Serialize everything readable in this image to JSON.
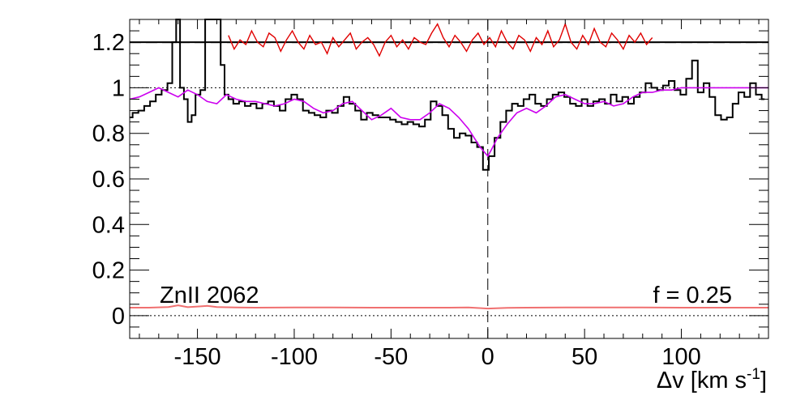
{
  "chart_data": {
    "type": "line",
    "xlabel_main": "Δv [km s",
    "xlabel_exp": "-1",
    "xlabel_close": "]",
    "ylabel": "",
    "xlim": [
      -185,
      145
    ],
    "ylim": [
      -0.1,
      1.3
    ],
    "x_ticks": [
      -150,
      -100,
      -50,
      0,
      50,
      100
    ],
    "x_tick_labels": [
      "-150",
      "-100",
      "-50",
      "0",
      "50",
      "100"
    ],
    "y_ticks": [
      0,
      0.2,
      0.4,
      0.6,
      0.8,
      1,
      1.2
    ],
    "y_tick_labels": [
      "0",
      "0.2",
      "0.4",
      "0.6",
      "0.8",
      "1",
      "1.2"
    ],
    "annotations": {
      "ion_label": "ZnII 2062",
      "f_label": "f = 0.25"
    },
    "reference_lines": {
      "continuum": 1.0,
      "zero": 0.0,
      "residual_mean": 1.2,
      "zero_velocity": 0
    },
    "colors": {
      "spectrum": "#000000",
      "model": "#cc00ee",
      "residuals": "#e00000",
      "error": "#f07070"
    },
    "series": [
      {
        "role": "spectrum",
        "style": "step",
        "x": [
          -185,
          -182,
          -179,
          -176,
          -173,
          -170,
          -167,
          -164,
          -162,
          -160,
          -158,
          -156,
          -154,
          -152,
          -150,
          -147,
          -145,
          -143,
          -141,
          -139,
          -137,
          -135,
          -133,
          -130,
          -127,
          -124,
          -121,
          -118,
          -115,
          -112,
          -109,
          -106,
          -103,
          -100,
          -97,
          -94,
          -91,
          -88,
          -85,
          -82,
          -79,
          -76,
          -73,
          -70,
          -67,
          -64,
          -61,
          -58,
          -55,
          -52,
          -49,
          -46,
          -43,
          -40,
          -37,
          -34,
          -31,
          -28,
          -25,
          -22,
          -19,
          -16,
          -13,
          -10,
          -7,
          -4,
          -1,
          2,
          5,
          8,
          11,
          14,
          17,
          20,
          23,
          26,
          29,
          32,
          35,
          38,
          41,
          44,
          47,
          50,
          53,
          56,
          59,
          62,
          65,
          68,
          71,
          74,
          77,
          80,
          83,
          86,
          89,
          92,
          95,
          98,
          101,
          104,
          107,
          110,
          113,
          116,
          119,
          122,
          125,
          128,
          131,
          134,
          137,
          140,
          143
        ],
        "y": [
          0.87,
          0.89,
          0.9,
          0.92,
          0.94,
          0.97,
          0.99,
          1.02,
          1.2,
          1.3,
          1.0,
          0.95,
          0.85,
          0.88,
          0.97,
          0.99,
          1.3,
          1.3,
          1.3,
          1.3,
          1.1,
          0.97,
          0.95,
          0.93,
          0.94,
          0.92,
          0.93,
          0.91,
          0.93,
          0.94,
          0.92,
          0.9,
          0.95,
          0.97,
          0.95,
          0.9,
          0.89,
          0.88,
          0.87,
          0.9,
          0.89,
          0.92,
          0.96,
          0.93,
          0.9,
          0.86,
          0.89,
          0.88,
          0.87,
          0.87,
          0.86,
          0.85,
          0.84,
          0.85,
          0.84,
          0.83,
          0.86,
          0.94,
          0.92,
          0.88,
          0.82,
          0.78,
          0.8,
          0.79,
          0.76,
          0.74,
          0.64,
          0.7,
          0.78,
          0.85,
          0.9,
          0.93,
          0.92,
          0.95,
          0.97,
          0.93,
          0.92,
          0.95,
          0.97,
          0.98,
          0.96,
          0.93,
          0.92,
          0.95,
          0.92,
          0.94,
          0.95,
          0.93,
          0.97,
          0.94,
          0.96,
          0.93,
          0.96,
          0.98,
          1.02,
          1.0,
          0.99,
          1.01,
          1.03,
          0.99,
          0.97,
          1.04,
          1.12,
          0.98,
          1.02,
          0.96,
          0.88,
          0.86,
          0.87,
          0.93,
          0.98,
          0.96,
          1.02,
          0.97,
          0.95
        ],
        "name": ""
      },
      {
        "role": "model",
        "style": "line",
        "x": [
          -185,
          -180,
          -175,
          -170,
          -165,
          -160,
          -155,
          -150,
          -145,
          -140,
          -135,
          -130,
          -125,
          -120,
          -115,
          -110,
          -105,
          -100,
          -95,
          -90,
          -85,
          -80,
          -75,
          -70,
          -65,
          -60,
          -55,
          -50,
          -45,
          -40,
          -35,
          -30,
          -25,
          -20,
          -15,
          -10,
          -7,
          -4,
          -2,
          0,
          2,
          5,
          10,
          15,
          20,
          25,
          30,
          35,
          40,
          45,
          50,
          55,
          60,
          65,
          70,
          75,
          80,
          85,
          90,
          95,
          100,
          105,
          110,
          115,
          120,
          125,
          130,
          135,
          140,
          145
        ],
        "y": [
          0.95,
          0.96,
          0.98,
          1.0,
          0.98,
          0.96,
          0.99,
          0.97,
          0.94,
          0.93,
          0.97,
          0.95,
          0.94,
          0.94,
          0.93,
          0.92,
          0.93,
          0.95,
          0.94,
          0.91,
          0.89,
          0.9,
          0.93,
          0.94,
          0.9,
          0.86,
          0.88,
          0.91,
          0.87,
          0.86,
          0.86,
          0.89,
          0.93,
          0.91,
          0.87,
          0.82,
          0.78,
          0.74,
          0.72,
          0.7,
          0.73,
          0.78,
          0.84,
          0.89,
          0.91,
          0.89,
          0.92,
          0.96,
          0.97,
          0.95,
          0.93,
          0.93,
          0.94,
          0.92,
          0.93,
          0.96,
          0.98,
          0.98,
          0.99,
          0.99,
          1.0,
          1.0,
          1.0,
          1.0,
          1.0,
          1.0,
          1.0,
          1.0,
          1.0,
          1.0
        ],
        "name": ""
      },
      {
        "role": "residuals",
        "style": "line",
        "x": [
          -134,
          -131,
          -128,
          -125,
          -122,
          -119,
          -116,
          -113,
          -110,
          -107,
          -104,
          -101,
          -98,
          -95,
          -92,
          -89,
          -86,
          -83,
          -80,
          -77,
          -74,
          -71,
          -68,
          -65,
          -62,
          -59,
          -56,
          -53,
          -50,
          -47,
          -44,
          -41,
          -38,
          -35,
          -32,
          -29,
          -26,
          -23,
          -20,
          -17,
          -14,
          -11,
          -8,
          -5,
          -2,
          1,
          4,
          7,
          10,
          13,
          16,
          19,
          22,
          25,
          28,
          31,
          34,
          37,
          40,
          43,
          46,
          49,
          52,
          55,
          58,
          61,
          64,
          67,
          70,
          73,
          76,
          79,
          82,
          85
        ],
        "y": [
          1.23,
          1.17,
          1.21,
          1.19,
          1.25,
          1.2,
          1.18,
          1.24,
          1.22,
          1.16,
          1.21,
          1.25,
          1.2,
          1.17,
          1.23,
          1.19,
          1.2,
          1.15,
          1.22,
          1.18,
          1.21,
          1.24,
          1.17,
          1.2,
          1.22,
          1.19,
          1.14,
          1.2,
          1.23,
          1.18,
          1.21,
          1.17,
          1.22,
          1.2,
          1.19,
          1.24,
          1.28,
          1.22,
          1.18,
          1.23,
          1.2,
          1.16,
          1.21,
          1.24,
          1.19,
          1.22,
          1.18,
          1.25,
          1.2,
          1.17,
          1.23,
          1.21,
          1.16,
          1.22,
          1.19,
          1.25,
          1.18,
          1.21,
          1.28,
          1.2,
          1.17,
          1.23,
          1.19,
          1.26,
          1.2,
          1.18,
          1.24,
          1.21,
          1.17,
          1.23,
          1.2,
          1.24,
          1.19,
          1.22
        ],
        "name": ""
      },
      {
        "role": "error",
        "style": "line",
        "x": [
          -185,
          -175,
          -165,
          -160,
          -155,
          -150,
          -145,
          -140,
          -130,
          -120,
          -100,
          -80,
          -60,
          -40,
          -20,
          -10,
          0,
          10,
          20,
          40,
          60,
          80,
          100,
          120,
          145
        ],
        "y": [
          0.035,
          0.035,
          0.038,
          0.045,
          0.037,
          0.04,
          0.043,
          0.038,
          0.036,
          0.035,
          0.036,
          0.036,
          0.035,
          0.035,
          0.035,
          0.036,
          0.031,
          0.034,
          0.035,
          0.036,
          0.036,
          0.036,
          0.035,
          0.035,
          0.035
        ],
        "name": ""
      }
    ]
  }
}
